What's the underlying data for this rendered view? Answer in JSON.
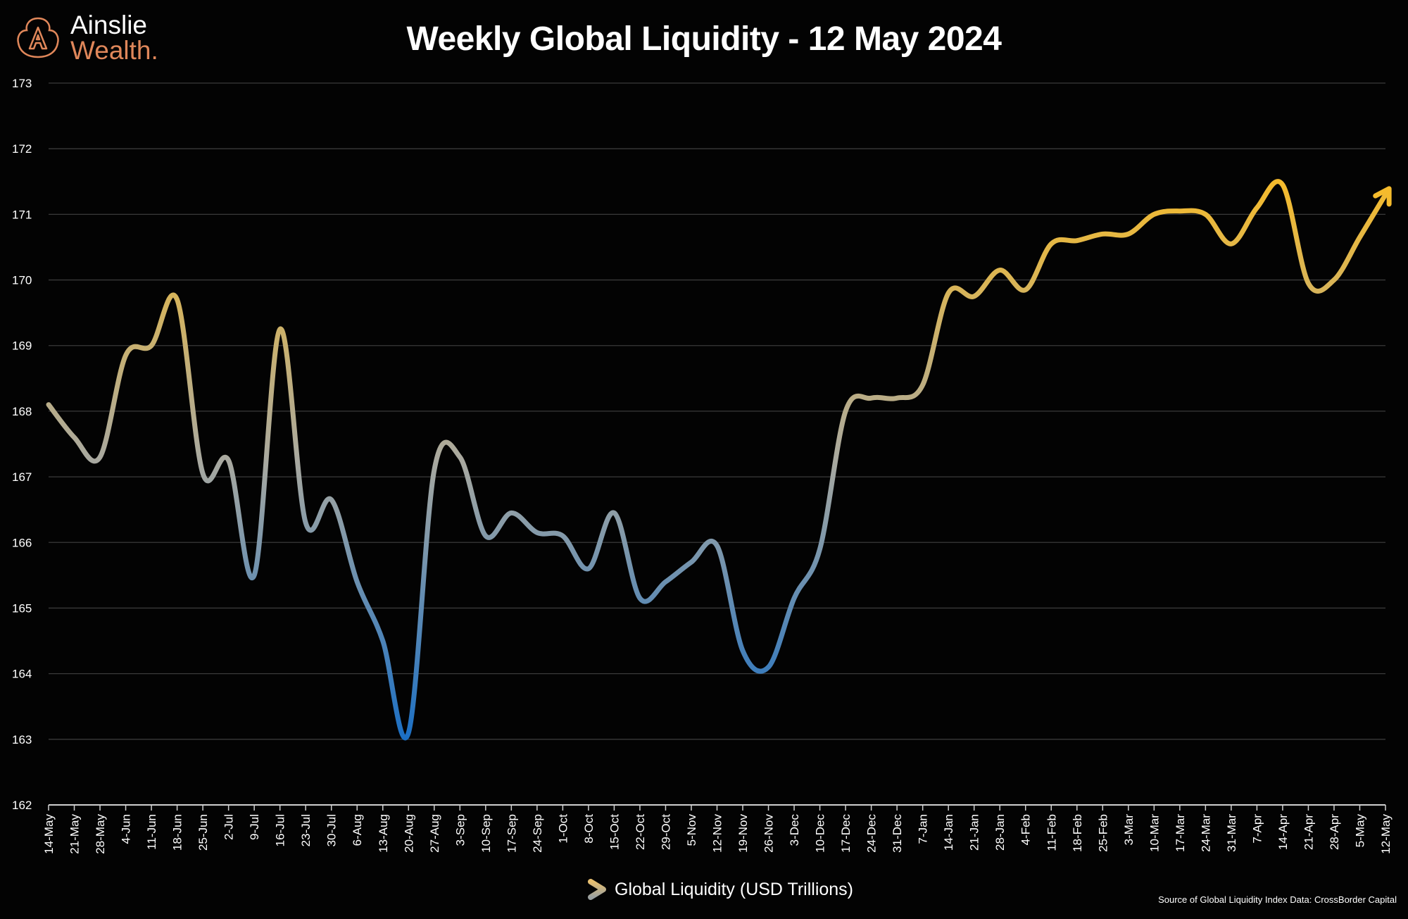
{
  "logo": {
    "line1": "Ainslie",
    "line2": "Wealth."
  },
  "chart_data": {
    "type": "line",
    "title": "Weekly Global Liquidity - 12 May 2024",
    "xlabel": "",
    "ylabel": "",
    "ylim": [
      162,
      173
    ],
    "yticks": [
      162,
      163,
      164,
      165,
      166,
      167,
      168,
      169,
      170,
      171,
      172,
      173
    ],
    "grid": true,
    "legend_position": "bottom-center",
    "categories": [
      "14-May",
      "21-May",
      "28-May",
      "4-Jun",
      "11-Jun",
      "18-Jun",
      "25-Jun",
      "2-Jul",
      "9-Jul",
      "16-Jul",
      "23-Jul",
      "30-Jul",
      "6-Aug",
      "13-Aug",
      "20-Aug",
      "27-Aug",
      "3-Sep",
      "10-Sep",
      "17-Sep",
      "24-Sep",
      "1-Oct",
      "8-Oct",
      "15-Oct",
      "22-Oct",
      "29-Oct",
      "5-Nov",
      "12-Nov",
      "19-Nov",
      "26-Nov",
      "3-Dec",
      "10-Dec",
      "17-Dec",
      "24-Dec",
      "31-Dec",
      "7-Jan",
      "14-Jan",
      "21-Jan",
      "28-Jan",
      "4-Feb",
      "11-Feb",
      "18-Feb",
      "25-Feb",
      "3-Mar",
      "10-Mar",
      "17-Mar",
      "24-Mar",
      "31-Mar",
      "7-Apr",
      "14-Apr",
      "21-Apr",
      "28-Apr",
      "5-May",
      "12-May"
    ],
    "series": [
      {
        "name": "Global Liquidity (USD Trillions)",
        "values": [
          168.1,
          167.6,
          167.3,
          168.85,
          169.0,
          169.7,
          167.05,
          167.25,
          165.5,
          169.25,
          166.3,
          166.65,
          165.4,
          164.5,
          163.1,
          167.1,
          167.3,
          166.1,
          166.45,
          166.15,
          166.1,
          165.6,
          166.45,
          165.15,
          165.4,
          165.7,
          165.95,
          164.35,
          164.1,
          165.15,
          165.9,
          168.0,
          168.2,
          168.2,
          168.4,
          169.8,
          169.75,
          170.15,
          169.85,
          170.55,
          170.6,
          170.7,
          170.7,
          171.0,
          171.05,
          171.0,
          170.55,
          171.1,
          171.45,
          169.95,
          170.0,
          170.65,
          171.3
        ]
      }
    ],
    "colors": {
      "high": "#f5bb2c",
      "mid": "#a9a9a0",
      "low": "#1b6fc4",
      "grid": "#3a3a3a",
      "axis": "#cfcfcf"
    }
  },
  "source": "Source of Global Liquidity Index Data: CrossBorder Capital"
}
